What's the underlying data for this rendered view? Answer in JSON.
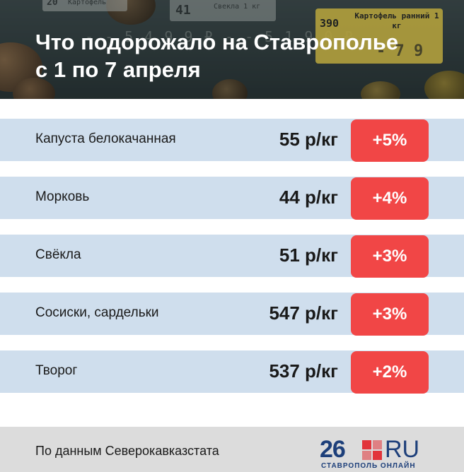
{
  "header": {
    "title_line1": "Что подорожало на Ставрополье",
    "title_line2": "с 1 по 7 апреля",
    "background_tags": [
      {
        "num": "20",
        "name": "Картофель",
        "price": "- - 5 4 9 9 ₽"
      },
      {
        "num": "41",
        "name": "Свекла 1 кг",
        "price": "- - 5 1 9 0 ₽"
      },
      {
        "num": "390",
        "name": "Картофель ранний 1 кг",
        "price": "- 7 9"
      }
    ]
  },
  "rows": [
    {
      "name": "Капуста белокачанная",
      "price": "55 р/кг",
      "change": "+5%"
    },
    {
      "name": "Морковь",
      "price": "44 р/кг",
      "change": "+4%"
    },
    {
      "name": "Свёкла",
      "price": "51 р/кг",
      "change": "+3%"
    },
    {
      "name": "Сосиски, сардельки",
      "price": "547 р/кг",
      "change": "+3%"
    },
    {
      "name": "Творог",
      "price": "537 р/кг",
      "change": "+2%"
    }
  ],
  "footer": {
    "source": "По данным Северокавказстата",
    "logo_number": "26",
    "logo_domain": "RU",
    "logo_subtitle": "СТАВРОПОЛЬ ОНЛАЙН"
  },
  "colors": {
    "row_bg": "#cfdeed",
    "badge_red": "#f14646",
    "footer_bg": "#dcdcdc",
    "logo_blue": "#1d3f7a",
    "logo_red": "#e2343b"
  }
}
